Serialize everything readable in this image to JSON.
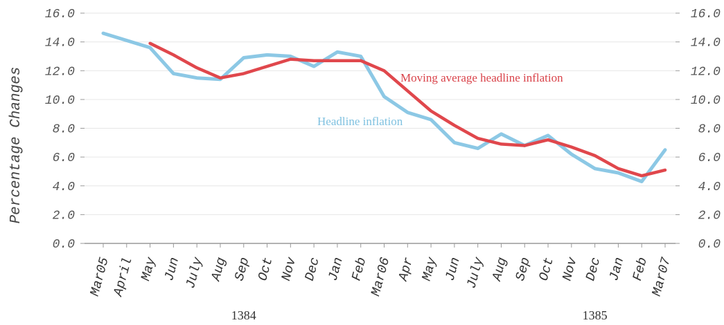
{
  "chart_data": {
    "type": "line",
    "ylabel": "Percentage Changes",
    "ylim": [
      0,
      16
    ],
    "yticks_left": [
      "0.0",
      "2.0",
      "4.0",
      "6.0",
      "8.0",
      "10.0",
      "12.0",
      "14.0",
      "16.0"
    ],
    "yticks_right": [
      "0.0",
      "2.0",
      "4.0",
      "6.0",
      "8.0",
      "10.0",
      "12.0",
      "14.0",
      "16.0"
    ],
    "categories": [
      "Mar05",
      "April",
      "May",
      "Jun",
      "July",
      "Aug",
      "Sep",
      "Oct",
      "Nov",
      "Dec",
      "Jan",
      "Feb",
      "Mar06",
      "Apr",
      "May",
      "Jun",
      "July",
      "Aug",
      "Sep",
      "Oct",
      "Nov",
      "Dec",
      "Jan",
      "Feb",
      "Mar07"
    ],
    "year_labels": [
      {
        "text": "1384",
        "category_index": 6
      },
      {
        "text": "1385",
        "category_index": 21
      }
    ],
    "series": [
      {
        "name": "Headline inflation",
        "color": "#86c5e4",
        "values": [
          14.6,
          14.1,
          13.6,
          11.8,
          11.5,
          11.4,
          12.9,
          13.1,
          13.0,
          12.3,
          13.3,
          13.0,
          10.2,
          9.1,
          8.6,
          7.0,
          6.6,
          7.6,
          6.8,
          7.5,
          6.2,
          5.2,
          4.9,
          4.3,
          6.5
        ]
      },
      {
        "name": "Moving average headline inflation",
        "color": "#e0474c",
        "values": [
          null,
          null,
          13.9,
          13.1,
          12.2,
          11.5,
          11.8,
          12.3,
          12.8,
          12.7,
          12.7,
          12.7,
          12.0,
          10.6,
          9.2,
          8.2,
          7.3,
          6.9,
          6.8,
          7.2,
          6.7,
          6.1,
          5.2,
          4.7,
          5.1
        ]
      }
    ],
    "annotations": {
      "red_label": "Moving average headline inflation",
      "blue_label": "Headline inflation"
    }
  }
}
